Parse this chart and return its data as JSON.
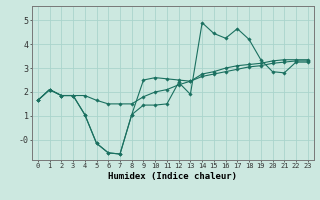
{
  "xlabel": "Humidex (Indice chaleur)",
  "bg_color": "#cce8e0",
  "grid_color": "#aad4cc",
  "line_color": "#1a7060",
  "xlim": [
    -0.5,
    23.5
  ],
  "ylim": [
    -0.85,
    5.6
  ],
  "x_ticks": [
    0,
    1,
    2,
    3,
    4,
    5,
    6,
    7,
    8,
    9,
    10,
    11,
    12,
    13,
    14,
    15,
    16,
    17,
    18,
    19,
    20,
    21,
    22,
    23
  ],
  "y_ticks": [
    0,
    1,
    2,
    3,
    4,
    5
  ],
  "y_tick_labels": [
    "-0",
    "1",
    "2",
    "3",
    "4",
    "5"
  ],
  "lines": [
    {
      "x": [
        0,
        1,
        2,
        3,
        4,
        5,
        6,
        7,
        8,
        9,
        10,
        11,
        12,
        13,
        14,
        15,
        16,
        17,
        18,
        19,
        20,
        21,
        22,
        23
      ],
      "y": [
        1.65,
        2.1,
        1.85,
        1.85,
        1.05,
        -0.15,
        -0.55,
        -0.6,
        1.05,
        1.45,
        1.45,
        1.5,
        2.4,
        1.9,
        4.9,
        4.45,
        4.25,
        4.65,
        4.2,
        3.35,
        2.85,
        2.8,
        3.25,
        3.25
      ]
    },
    {
      "x": [
        0,
        1,
        2,
        3,
        4,
        5,
        6,
        7,
        8,
        9,
        10,
        11,
        12,
        13,
        14,
        15,
        16,
        17,
        18,
        19,
        20,
        21,
        22,
        23
      ],
      "y": [
        1.65,
        2.1,
        1.85,
        1.85,
        1.05,
        -0.15,
        -0.55,
        -0.6,
        1.05,
        2.5,
        2.6,
        2.55,
        2.5,
        2.45,
        2.75,
        2.85,
        3.0,
        3.1,
        3.15,
        3.2,
        3.3,
        3.35,
        3.35,
        3.35
      ]
    },
    {
      "x": [
        0,
        1,
        2,
        3,
        4,
        5,
        6,
        7,
        8,
        9,
        10,
        11,
        12,
        13,
        14,
        15,
        16,
        17,
        18,
        19,
        20,
        21,
        22,
        23
      ],
      "y": [
        1.65,
        2.1,
        1.85,
        1.85,
        1.85,
        1.65,
        1.5,
        1.5,
        1.5,
        1.8,
        2.0,
        2.1,
        2.3,
        2.45,
        2.65,
        2.75,
        2.85,
        2.95,
        3.05,
        3.1,
        3.2,
        3.25,
        3.3,
        3.3
      ]
    }
  ],
  "tick_fontsize": 5.0,
  "xlabel_fontsize": 6.5,
  "marker_size": 1.8,
  "linewidth": 0.8
}
